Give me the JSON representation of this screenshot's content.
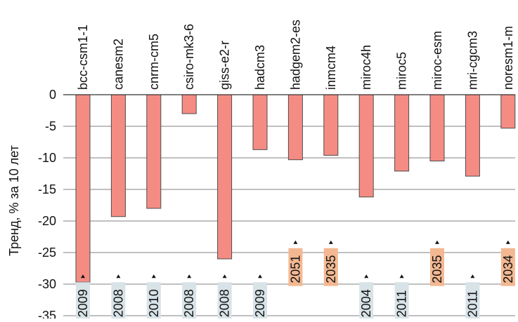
{
  "chart_data": {
    "type": "bar",
    "title": "",
    "xlabel": "",
    "ylabel": "Тренд, % за 10 лет",
    "ylim": [
      -35,
      0
    ],
    "yticks": [
      0,
      -5,
      -10,
      -15,
      -20,
      -25,
      -30,
      -35
    ],
    "grid": true,
    "categories": [
      "bcc-csm1-1",
      "canesm2",
      "cnrm-cm5",
      "csiro-mk3-6",
      "giss-e2-r",
      "hadcm3",
      "hadgem2-es",
      "inmcm4",
      "miroc4h",
      "miroc5",
      "miroc-esm",
      "mri-cgcm3",
      "noresm1-m"
    ],
    "series": [
      {
        "values": [
          -29.7,
          -19.3,
          -18.0,
          -3.0,
          -26.0,
          -8.7,
          -10.3,
          -9.6,
          -16.2,
          -12.1,
          -10.5,
          -12.9,
          -5.3
        ]
      }
    ],
    "year_labels": [
      {
        "category": "bcc-csm1-1",
        "label": "2009",
        "value": -29.7,
        "color": "#d8e3e8"
      },
      {
        "category": "canesm2",
        "label": "2008",
        "value": -29.7,
        "color": "#d8e3e8"
      },
      {
        "category": "cnrm-cm5",
        "label": "2010",
        "value": -29.7,
        "color": "#d8e3e8"
      },
      {
        "category": "csiro-mk3-6",
        "label": "2008",
        "value": -29.7,
        "color": "#d8e3e8"
      },
      {
        "category": "giss-e2-r",
        "label": "2008",
        "value": -29.7,
        "color": "#d8e3e8"
      },
      {
        "category": "hadcm3",
        "label": "2009",
        "value": -29.7,
        "color": "#d8e3e8"
      },
      {
        "category": "hadgem2-es",
        "label": "2051",
        "value": -24.3,
        "color": "#f3b892"
      },
      {
        "category": "inmcm4",
        "label": "2035",
        "value": -24.3,
        "color": "#f3b892"
      },
      {
        "category": "miroc4h",
        "label": "2004",
        "value": -29.7,
        "color": "#d8e3e8"
      },
      {
        "category": "miroc5",
        "label": "2011",
        "value": -29.7,
        "color": "#d8e3e8"
      },
      {
        "category": "miroc-esm",
        "label": "2035",
        "value": -24.3,
        "color": "#f3b892"
      },
      {
        "category": "mri-cgcm3",
        "label": "2011",
        "value": -29.7,
        "color": "#d8e3e8"
      },
      {
        "category": "noresm1-m",
        "label": "2034",
        "value": -24.3,
        "color": "#f3b892"
      }
    ],
    "colors": {
      "bar_fill": "#f48c83",
      "bar_stroke": "#4d4d4d",
      "grid": "#808080",
      "axis": "#333333",
      "marker": "#111111"
    }
  }
}
